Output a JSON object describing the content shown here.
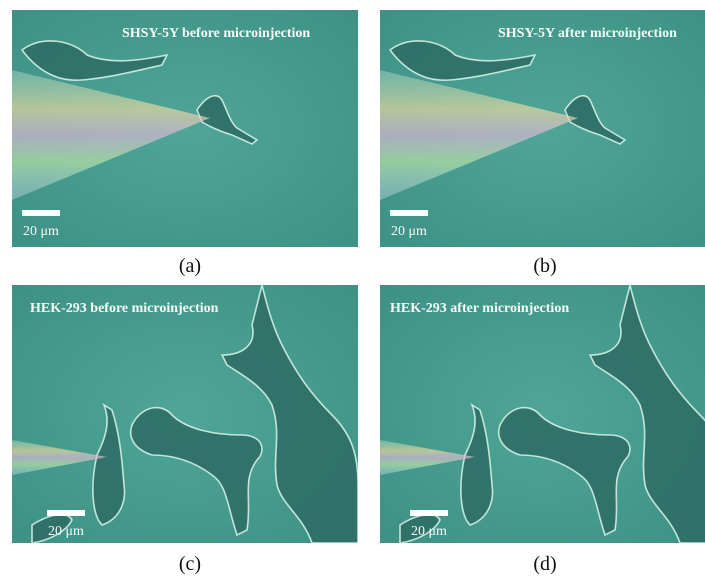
{
  "panels": [
    {
      "title": "SHSY-5Y before microinjection",
      "scale_label": "20 μm",
      "caption": "(a)"
    },
    {
      "title": "SHSY-5Y after microinjection",
      "scale_label": "20 μm",
      "caption": "(b)"
    },
    {
      "title": "HEK-293 before microinjection",
      "scale_label": "20 μm",
      "caption": "(c)"
    },
    {
      "title": "HEK-293 after microinjection",
      "scale_label": "20 μm",
      "caption": "(d)"
    }
  ]
}
